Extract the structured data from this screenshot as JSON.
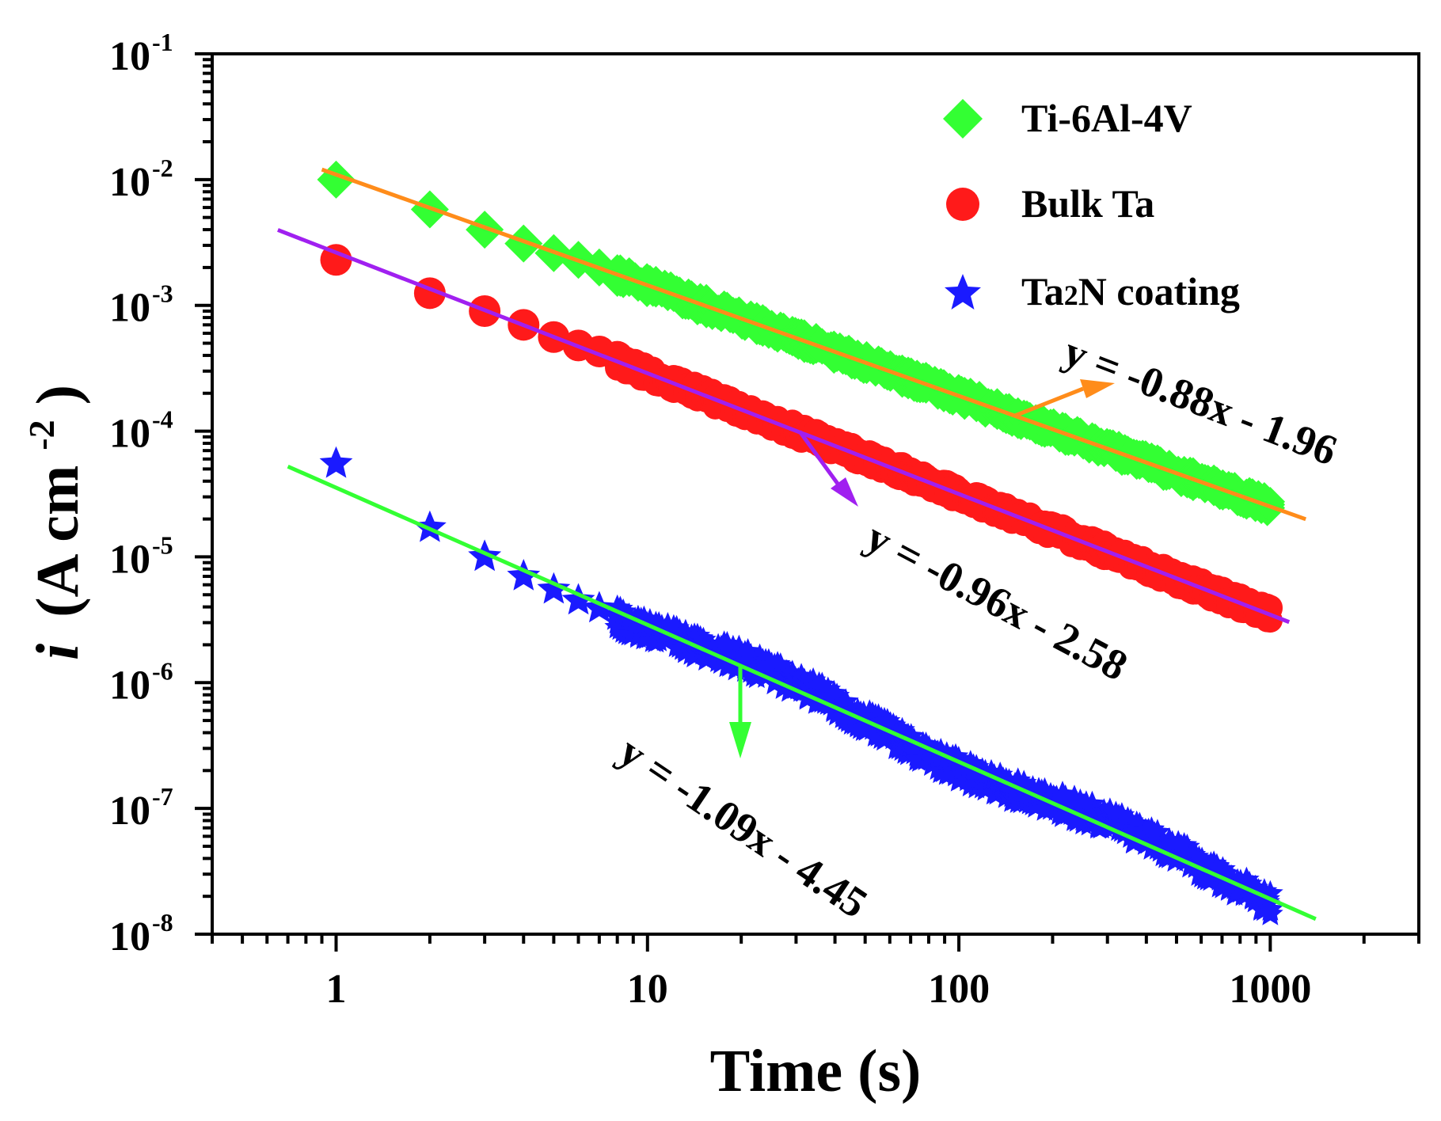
{
  "chart_data": {
    "type": "scatter",
    "xlabel": "Time (s)",
    "ylabel_italic": "i",
    "ylabel_unit": "(A cm",
    "ylabel_exp": "-2",
    "ylabel_close": ")",
    "x_scale": "log",
    "y_scale": "log",
    "xlim": [
      0.4,
      3000
    ],
    "ylim": [
      1e-08,
      0.1
    ],
    "x_ticks": [
      {
        "value": 1,
        "label": "1"
      },
      {
        "value": 10,
        "label": "10"
      },
      {
        "value": 100,
        "label": "100"
      },
      {
        "value": 1000,
        "label": "1000"
      }
    ],
    "y_ticks": [
      {
        "value": 0.1,
        "base": "10",
        "exp": "-1"
      },
      {
        "value": 0.01,
        "base": "10",
        "exp": "-2"
      },
      {
        "value": 0.001,
        "base": "10",
        "exp": "-3"
      },
      {
        "value": 0.0001,
        "base": "10",
        "exp": "-4"
      },
      {
        "value": 1e-05,
        "base": "10",
        "exp": "-5"
      },
      {
        "value": 1e-06,
        "base": "10",
        "exp": "-6"
      },
      {
        "value": 1e-07,
        "base": "10",
        "exp": "-7"
      },
      {
        "value": 1e-08,
        "base": "10",
        "exp": "-8"
      }
    ],
    "legend_position": "top-right",
    "series": [
      {
        "name": "Ti-6Al-4V",
        "legend_label": "Ti-6Al-4V",
        "marker": "diamond",
        "color": "#33ff33",
        "points": [
          [
            1,
            0.01
          ],
          [
            2,
            0.0058
          ],
          [
            3,
            0.004
          ],
          [
            4,
            0.0031
          ],
          [
            5,
            0.0026
          ],
          [
            6,
            0.0023
          ],
          [
            7,
            0.002
          ],
          [
            8,
            0.0018
          ]
        ],
        "dense": {
          "x_start": 8,
          "x_end": 1000,
          "slope": -0.88,
          "intercept": -1.96,
          "band": 0.06
        },
        "fit": {
          "slope": -0.88,
          "intercept": -1.96,
          "x_range": [
            0.9,
            1300
          ],
          "color": "#ff8c1a",
          "label": "y = -0.88x - 1.96"
        }
      },
      {
        "name": "Bulk Ta",
        "legend_label": "Bulk Ta",
        "marker": "circle",
        "color": "#ff1a1a",
        "points": [
          [
            1,
            0.0023
          ],
          [
            2,
            0.00125
          ],
          [
            3,
            0.0009
          ],
          [
            4,
            0.0007
          ],
          [
            5,
            0.00056
          ],
          [
            6,
            0.00048
          ],
          [
            7,
            0.00043
          ],
          [
            8,
            0.00039
          ]
        ],
        "dense": {
          "x_start": 8,
          "x_end": 1000,
          "slope": -0.96,
          "intercept": -2.58,
          "band": 0.06
        },
        "fit": {
          "slope": -0.96,
          "intercept": -2.58,
          "x_range": [
            0.65,
            1150
          ],
          "color": "#a020f0",
          "label": "y = -0.96x - 2.58"
        }
      },
      {
        "name": "Ta2N coating",
        "legend_label_main": "Ta",
        "legend_label_sub": "2",
        "legend_label_rest": "N coating",
        "marker": "star",
        "color": "#1a1aff",
        "points": [
          [
            1,
            5.5e-05
          ],
          [
            2,
            1.7e-05
          ],
          [
            3,
            1e-05
          ],
          [
            4,
            7e-06
          ],
          [
            5,
            5.5e-06
          ],
          [
            6,
            4.5e-06
          ],
          [
            7,
            3.9e-06
          ],
          [
            8,
            3.4e-06
          ]
        ],
        "dense": {
          "x_start": 8,
          "x_end": 1000,
          "slope": -1.09,
          "intercept": -4.45,
          "band": 0.09
        },
        "fit": {
          "slope": -1.09,
          "intercept": -4.45,
          "x_range": [
            0.7,
            1400
          ],
          "color": "#33ff33",
          "label": "y = -1.09x - 4.45"
        }
      }
    ]
  }
}
